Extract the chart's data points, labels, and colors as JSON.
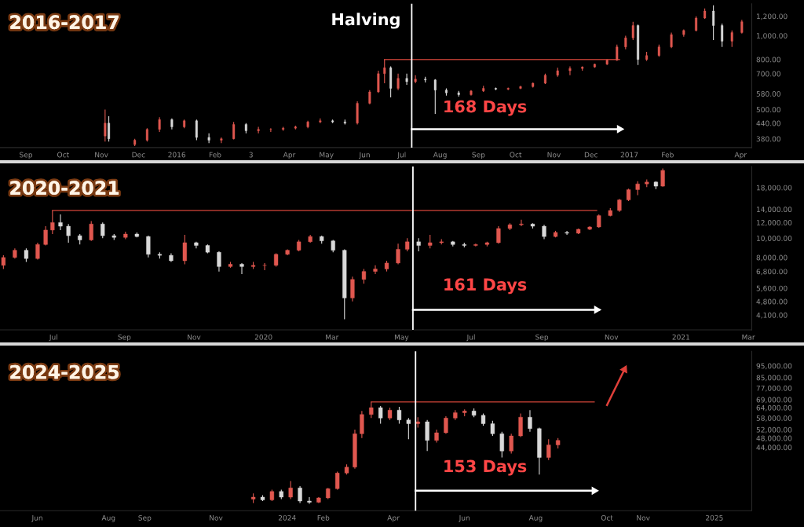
{
  "chart_data": [
    {
      "type": "candlestick",
      "title": "2016-2017",
      "colors": [
        "#e0574f",
        "#d9d9d9",
        "#e0574f",
        "#e0574f",
        "#e0574f",
        "#d9d9d9",
        "#e0574f",
        "#d9d9d9",
        "#d9d9d9",
        "#e0574f",
        "#e0574f",
        "#d9d9d9",
        "#e0574f",
        "#e0574f",
        "#e0574f",
        "#e0574f",
        "#e0574f",
        "#e0574f",
        "#d9d9d9",
        "#d9d9d9",
        "#e0574f",
        "#e0574f",
        "#e0574f",
        "#e0574f",
        "#d9d9d9",
        "#e0574f",
        "#d9d9d9",
        "#e0574f",
        "#d9d9d9",
        "#d9d9d9",
        "#d9d9d9",
        "#d9d9d9",
        "#e0574f",
        "#e0574f",
        "#d9d9d9",
        "#e0574f",
        "#e0574f",
        "#e0574f",
        "#e0574f",
        "#e0574f",
        "#e0574f",
        "#e0574f",
        "#e0574f",
        "#e0574f",
        "#e0574f",
        "#e0574f",
        "#e0574f",
        "#d9d9d9",
        "#e0574f",
        "#e0574f",
        "#e0574f",
        "#e0574f",
        "#e0574f",
        "#e0574f",
        "#d9d9d9",
        "#d9d9d9",
        "#e0574f",
        "#e0574f"
      ],
      "log": true,
      "grid": false,
      "xlim": [
        "2015-08-11",
        "2017-04-10"
      ],
      "ylim": [
        350,
        1350
      ],
      "xticks": [
        {
          "value": "2015-09-01",
          "label": "Sep"
        },
        {
          "value": "2015-10-01",
          "label": "Oct"
        },
        {
          "value": "2015-11-01",
          "label": "Nov"
        },
        {
          "value": "2015-12-01",
          "label": "Dec"
        },
        {
          "value": "2016-01-01",
          "label": "2016"
        },
        {
          "value": "2016-02-01",
          "label": "Feb"
        },
        {
          "value": "2016-03-01",
          "label": "3"
        },
        {
          "value": "2016-04-01",
          "label": "Apr"
        },
        {
          "value": "2016-05-01",
          "label": "May"
        },
        {
          "value": "2016-06-01",
          "label": "Jun"
        },
        {
          "value": "2016-07-01",
          "label": "Jul"
        },
        {
          "value": "2016-08-01",
          "label": "Aug"
        },
        {
          "value": "2016-09-01",
          "label": "Sep"
        },
        {
          "value": "2016-10-01",
          "label": "Oct"
        },
        {
          "value": "2016-11-01",
          "label": "Nov"
        },
        {
          "value": "2016-12-01",
          "label": "Dec"
        },
        {
          "value": "2017-01-01",
          "label": "2017"
        },
        {
          "value": "2017-02-01",
          "label": "Feb"
        },
        {
          "value": "2017-04-01",
          "label": "Apr"
        }
      ],
      "yticks": [
        {
          "value": 380,
          "label": "380.00"
        },
        {
          "value": 440,
          "label": "440.00"
        },
        {
          "value": 500,
          "label": "500.00"
        },
        {
          "value": 580,
          "label": "580.00"
        },
        {
          "value": 700,
          "label": "700.00"
        },
        {
          "value": 800,
          "label": "800.00"
        },
        {
          "value": 1000,
          "label": "1,000.00"
        },
        {
          "value": 1200,
          "label": "1,200.00"
        }
      ],
      "x": [
        "2015-11-04",
        "2015-11-07",
        "2015-11-28",
        "2015-12-08",
        "2015-12-18",
        "2015-12-28",
        "2016-01-07",
        "2016-01-17",
        "2016-01-27",
        "2016-02-06",
        "2016-02-16",
        "2016-02-26",
        "2016-03-07",
        "2016-03-17",
        "2016-03-27",
        "2016-04-06",
        "2016-04-16",
        "2016-04-26",
        "2016-05-06",
        "2016-05-16",
        "2016-05-26",
        "2016-06-05",
        "2016-06-12",
        "2016-06-17",
        "2016-06-22",
        "2016-06-28",
        "2016-07-05",
        "2016-07-12",
        "2016-07-20",
        "2016-07-28",
        "2016-08-06",
        "2016-08-16",
        "2016-08-26",
        "2016-09-05",
        "2016-09-15",
        "2016-09-25",
        "2016-10-05",
        "2016-10-15",
        "2016-10-25",
        "2016-11-04",
        "2016-11-14",
        "2016-11-24",
        "2016-12-04",
        "2016-12-14",
        "2016-12-22",
        "2016-12-29",
        "2017-01-04",
        "2017-01-08",
        "2017-01-15",
        "2017-01-25",
        "2017-02-04",
        "2017-02-14",
        "2017-02-24",
        "2017-03-03",
        "2017-03-10",
        "2017-03-17",
        "2017-03-25",
        "2017-04-02"
      ],
      "ohlc": [
        [
          390,
          500,
          370,
          440
        ],
        [
          440,
          470,
          370,
          380
        ],
        [
          360,
          380,
          355,
          375
        ],
        [
          375,
          420,
          370,
          415
        ],
        [
          415,
          465,
          405,
          455
        ],
        [
          455,
          460,
          415,
          425
        ],
        [
          425,
          455,
          420,
          450
        ],
        [
          450,
          455,
          375,
          385
        ],
        [
          385,
          400,
          365,
          375
        ],
        [
          375,
          385,
          365,
          380
        ],
        [
          380,
          445,
          378,
          435
        ],
        [
          435,
          440,
          400,
          410
        ],
        [
          410,
          425,
          400,
          415
        ],
        [
          415,
          420,
          405,
          415
        ],
        [
          415,
          425,
          410,
          420
        ],
        [
          420,
          430,
          415,
          425
        ],
        [
          425,
          450,
          420,
          445
        ],
        [
          445,
          460,
          440,
          450
        ],
        [
          450,
          455,
          440,
          445
        ],
        [
          445,
          455,
          435,
          440
        ],
        [
          440,
          540,
          435,
          530
        ],
        [
          530,
          600,
          525,
          590
        ],
        [
          590,
          720,
          585,
          700
        ],
        [
          700,
          800,
          640,
          740
        ],
        [
          740,
          750,
          560,
          610
        ],
        [
          610,
          700,
          600,
          670
        ],
        [
          670,
          700,
          630,
          650
        ],
        [
          650,
          690,
          640,
          665
        ],
        [
          665,
          680,
          645,
          660
        ],
        [
          660,
          665,
          480,
          600
        ],
        [
          600,
          610,
          570,
          585
        ],
        [
          585,
          595,
          565,
          575
        ],
        [
          575,
          600,
          570,
          595
        ],
        [
          595,
          625,
          590,
          610
        ],
        [
          610,
          615,
          600,
          605
        ],
        [
          605,
          615,
          600,
          610
        ],
        [
          610,
          625,
          605,
          620
        ],
        [
          620,
          645,
          615,
          640
        ],
        [
          640,
          700,
          635,
          690
        ],
        [
          690,
          740,
          680,
          720
        ],
        [
          720,
          750,
          690,
          735
        ],
        [
          735,
          750,
          720,
          745
        ],
        [
          745,
          770,
          740,
          765
        ],
        [
          765,
          800,
          760,
          795
        ],
        [
          795,
          920,
          790,
          900
        ],
        [
          900,
          1000,
          880,
          980
        ],
        [
          980,
          1140,
          960,
          1100
        ],
        [
          1100,
          1110,
          760,
          800
        ],
        [
          800,
          860,
          790,
          830
        ],
        [
          830,
          920,
          820,
          900
        ],
        [
          900,
          1030,
          890,
          1010
        ],
        [
          1010,
          1060,
          990,
          1050
        ],
        [
          1050,
          1200,
          1040,
          1180
        ],
        [
          1180,
          1290,
          1170,
          1260
        ],
        [
          1260,
          1330,
          960,
          1100
        ],
        [
          1100,
          1120,
          900,
          950
        ],
        [
          950,
          1050,
          900,
          1030
        ],
        [
          1030,
          1160,
          1020,
          1140
        ]
      ],
      "series": [
        {
          "type": "line",
          "color": "#b23a30",
          "x": [
            "2016-06-17",
            "2016-12-24"
          ],
          "values": [
            800,
            800
          ]
        },
        {
          "type": "line",
          "color": "#ffffff",
          "marker": "triangle",
          "x": [
            "2016-07-09",
            "2016-12-24"
          ],
          "values": [
            416,
            416
          ]
        }
      ],
      "ref_lines": [
        {
          "axis": "x",
          "value": "2016-07-09",
          "color": "#ffffff"
        }
      ],
      "annotations": [
        {
          "text": "Halving",
          "x": "2016-07-09",
          "y": 1150
        },
        "168 Days"
      ]
    },
    {
      "type": "candlestick",
      "title": "2020-2021",
      "colors": [
        "#e0574f",
        "#e0574f",
        "#d9d9d9",
        "#e0574f",
        "#e0574f",
        "#e0574f",
        "#d9d9d9",
        "#d9d9d9",
        "#d9d9d9",
        "#e0574f",
        "#d9d9d9",
        "#d9d9d9",
        "#e0574f",
        "#d9d9d9",
        "#d9d9d9",
        "#d9d9d9",
        "#d9d9d9",
        "#e0574f",
        "#d9d9d9",
        "#d9d9d9",
        "#d9d9d9",
        "#e0574f",
        "#d9d9d9",
        "#e0574f",
        "#e0574f",
        "#e0574f",
        "#e0574f",
        "#e0574f",
        "#e0574f",
        "#d9d9d9",
        "#d9d9d9",
        "#d9d9d9",
        "#e0574f",
        "#e0574f",
        "#e0574f",
        "#e0574f",
        "#e0574f",
        "#e0574f",
        "#d9d9d9",
        "#e0574f",
        "#e0574f",
        "#d9d9d9",
        "#d9d9d9",
        "#e0574f",
        "#e0574f",
        "#e0574f",
        "#e0574f",
        "#e0574f",
        "#d9d9d9",
        "#d9d9d9",
        "#e0574f",
        "#d9d9d9",
        "#e0574f",
        "#e0574f",
        "#e0574f",
        "#e0574f",
        "#e0574f",
        "#e0574f",
        "#e0574f",
        "#e0574f",
        "#d9d9d9",
        "#e0574f"
      ],
      "log": true,
      "grid": false,
      "xlim": [
        "2019-05-15",
        "2021-03-04"
      ],
      "ylim": [
        3450,
        23000
      ],
      "xticks": [
        {
          "value": "2019-07-01",
          "label": "Jul"
        },
        {
          "value": "2019-09-01",
          "label": "Sep"
        },
        {
          "value": "2019-11-01",
          "label": "Nov"
        },
        {
          "value": "2020-01-01",
          "label": "2020"
        },
        {
          "value": "2020-03-01",
          "label": "Mar"
        },
        {
          "value": "2020-05-01",
          "label": "May"
        },
        {
          "value": "2020-07-01",
          "label": "Jul"
        },
        {
          "value": "2020-09-01",
          "label": "Sep"
        },
        {
          "value": "2020-11-01",
          "label": "Nov"
        },
        {
          "value": "2021-01-01",
          "label": "2021"
        },
        {
          "value": "2021-03-01",
          "label": "Mar"
        }
      ],
      "yticks": [
        {
          "value": 4100,
          "label": "4,100.00"
        },
        {
          "value": 4800,
          "label": "4,800.00"
        },
        {
          "value": 5600,
          "label": "5,600.00"
        },
        {
          "value": 6800,
          "label": "6,800.00"
        },
        {
          "value": 8000,
          "label": "8,000.00"
        },
        {
          "value": 10000,
          "label": "10,000.00"
        },
        {
          "value": 12000,
          "label": "12,000.00"
        },
        {
          "value": 14000,
          "label": "14,000.00"
        },
        {
          "value": 18000,
          "label": "18,000.00"
        }
      ],
      "x": [
        "2019-05-18",
        "2019-05-28",
        "2019-06-07",
        "2019-06-17",
        "2019-06-24",
        "2019-06-30",
        "2019-07-07",
        "2019-07-14",
        "2019-07-24",
        "2019-08-03",
        "2019-08-13",
        "2019-08-23",
        "2019-09-02",
        "2019-09-12",
        "2019-09-22",
        "2019-10-02",
        "2019-10-12",
        "2019-10-24",
        "2019-11-03",
        "2019-11-13",
        "2019-11-23",
        "2019-12-03",
        "2019-12-13",
        "2019-12-23",
        "2020-01-02",
        "2020-01-12",
        "2020-01-22",
        "2020-02-01",
        "2020-02-11",
        "2020-02-21",
        "2020-03-02",
        "2020-03-12",
        "2020-03-19",
        "2020-03-29",
        "2020-04-08",
        "2020-04-18",
        "2020-04-28",
        "2020-05-06",
        "2020-05-16",
        "2020-05-26",
        "2020-06-05",
        "2020-06-15",
        "2020-06-25",
        "2020-07-05",
        "2020-07-15",
        "2020-07-25",
        "2020-08-04",
        "2020-08-14",
        "2020-08-24",
        "2020-09-03",
        "2020-09-13",
        "2020-09-23",
        "2020-10-03",
        "2020-10-13",
        "2020-10-21",
        "2020-10-31",
        "2020-11-08",
        "2020-11-16",
        "2020-11-24",
        "2020-12-02",
        "2020-12-10",
        "2020-12-16"
      ],
      "ohlc": [
        [
          7300,
          8200,
          7000,
          8000
        ],
        [
          8000,
          8900,
          7900,
          8700
        ],
        [
          8700,
          8900,
          7600,
          7900
        ],
        [
          7900,
          9500,
          7800,
          9300
        ],
        [
          9300,
          11500,
          9200,
          11000
        ],
        [
          11000,
          13800,
          10500,
          12000
        ],
        [
          12000,
          13200,
          11000,
          11500
        ],
        [
          11500,
          11800,
          9500,
          10300
        ],
        [
          10300,
          10500,
          9300,
          9800
        ],
        [
          9800,
          12200,
          9700,
          11800
        ],
        [
          11800,
          12000,
          10000,
          10300
        ],
        [
          10300,
          10500,
          9800,
          10100
        ],
        [
          10100,
          10800,
          9900,
          10500
        ],
        [
          10500,
          10700,
          10100,
          10200
        ],
        [
          10200,
          10300,
          8000,
          8300
        ],
        [
          8300,
          8500,
          7900,
          8200
        ],
        [
          8200,
          8400,
          7600,
          7700
        ],
        [
          7700,
          10400,
          7400,
          9500
        ],
        [
          9500,
          9600,
          8900,
          9200
        ],
        [
          9200,
          9300,
          8400,
          8500
        ],
        [
          8500,
          8600,
          6800,
          7200
        ],
        [
          7200,
          7600,
          7100,
          7400
        ],
        [
          7400,
          7500,
          6600,
          7200
        ],
        [
          7200,
          7600,
          7000,
          7300
        ],
        [
          7300,
          7500,
          6900,
          7300
        ],
        [
          7300,
          8400,
          7200,
          8300
        ],
        [
          8300,
          8800,
          8200,
          8700
        ],
        [
          8700,
          9800,
          8600,
          9600
        ],
        [
          9600,
          10400,
          9500,
          10200
        ],
        [
          10200,
          10300,
          9400,
          9700
        ],
        [
          9700,
          9800,
          8500,
          8700
        ],
        [
          8700,
          8800,
          3900,
          5000
        ],
        [
          5000,
          6400,
          4800,
          6200
        ],
        [
          6200,
          7000,
          5900,
          6800
        ],
        [
          6800,
          7300,
          6600,
          7000
        ],
        [
          7000,
          7700,
          6800,
          7500
        ],
        [
          7500,
          9400,
          7400,
          8800
        ],
        [
          8800,
          10000,
          8600,
          9600
        ],
        [
          9600,
          10000,
          8600,
          9200
        ],
        [
          9200,
          10400,
          8900,
          9500
        ],
        [
          9500,
          9900,
          9300,
          9600
        ],
        [
          9600,
          9700,
          9100,
          9300
        ],
        [
          9300,
          9500,
          9000,
          9200
        ],
        [
          9200,
          9400,
          9100,
          9300
        ],
        [
          9300,
          9600,
          9100,
          9500
        ],
        [
          9500,
          11500,
          9400,
          11200
        ],
        [
          11200,
          11900,
          11000,
          11700
        ],
        [
          11700,
          12400,
          11500,
          11800
        ],
        [
          11800,
          11900,
          11200,
          11500
        ],
        [
          11500,
          11700,
          9900,
          10200
        ],
        [
          10200,
          10900,
          10100,
          10700
        ],
        [
          10700,
          10900,
          10400,
          10600
        ],
        [
          10600,
          11200,
          10500,
          11100
        ],
        [
          11100,
          11500,
          11000,
          11400
        ],
        [
          11400,
          13200,
          11300,
          13000
        ],
        [
          13000,
          14200,
          12900,
          13800
        ],
        [
          13800,
          15800,
          13600,
          15600
        ],
        [
          15600,
          17800,
          15400,
          17600
        ],
        [
          17600,
          19400,
          16500,
          18800
        ],
        [
          18800,
          19800,
          18100,
          19200
        ],
        [
          19200,
          19400,
          17700,
          18300
        ],
        [
          18300,
          22500,
          18200,
          22000
        ]
      ],
      "series": [
        {
          "type": "line",
          "color": "#b23a30",
          "x": [
            "2019-06-30",
            "2020-10-19"
          ],
          "values": [
            13800,
            13800
          ]
        },
        {
          "type": "line",
          "color": "#ffffff",
          "marker": "triangle",
          "x": [
            "2020-05-11",
            "2020-10-19"
          ],
          "values": [
            4360,
            4360
          ]
        }
      ],
      "ref_lines": [
        {
          "axis": "x",
          "value": "2020-05-11",
          "color": "#ffffff"
        }
      ],
      "annotations": [
        "161 Days"
      ]
    },
    {
      "type": "candlestick",
      "title": "2024-2025",
      "colors": [
        "#e0574f",
        "#d9d9d9",
        "#e0574f",
        "#d9d9d9",
        "#e0574f",
        "#d9d9d9",
        "#d9d9d9",
        "#e0574f",
        "#e0574f",
        "#e0574f",
        "#e0574f",
        "#e0574f",
        "#e0574f",
        "#e0574f",
        "#d9d9d9",
        "#e0574f",
        "#d9d9d9",
        "#d9d9d9",
        "#e0574f",
        "#d9d9d9",
        "#e0574f",
        "#e0574f",
        "#e0574f",
        "#e0574f",
        "#d9d9d9",
        "#d9d9d9",
        "#d9d9d9",
        "#d9d9d9",
        "#e0574f",
        "#e0574f",
        "#d9d9d9",
        "#d9d9d9",
        "#e0574f",
        "#e0574f"
      ],
      "log": true,
      "grid": false,
      "xlim": [
        "2023-04-30",
        "2025-02-02"
      ],
      "ylim": [
        24200,
        109000
      ],
      "xticks": [
        {
          "value": "2023-06-01",
          "label": "Jun"
        },
        {
          "value": "2023-08-01",
          "label": "Aug"
        },
        {
          "value": "2023-09-01",
          "label": "Sep"
        },
        {
          "value": "2023-11-01",
          "label": "Nov"
        },
        {
          "value": "2024-01-01",
          "label": "2024"
        },
        {
          "value": "2024-02-01",
          "label": "Feb"
        },
        {
          "value": "2024-04-01",
          "label": "Apr"
        },
        {
          "value": "2024-06-01",
          "label": "Jun"
        },
        {
          "value": "2024-08-01",
          "label": "Aug"
        },
        {
          "value": "2024-10-01",
          "label": "Oct"
        },
        {
          "value": "2024-11-01",
          "label": "Nov"
        },
        {
          "value": "2025-01-01",
          "label": "2025"
        }
      ],
      "yticks": [
        {
          "value": 44000,
          "label": "44,000.00"
        },
        {
          "value": 48000,
          "label": "48,000.00"
        },
        {
          "value": 52000,
          "label": "52,000.00"
        },
        {
          "value": 58000,
          "label": "58,000.00"
        },
        {
          "value": 64000,
          "label": "64,000.00"
        },
        {
          "value": 69000,
          "label": "69,000.00"
        },
        {
          "value": 77000,
          "label": "77,000.00"
        },
        {
          "value": 85000,
          "label": "85,000.00"
        },
        {
          "value": 95000,
          "label": "95,000.00"
        }
      ],
      "x": [
        "2023-12-03",
        "2023-12-11",
        "2023-12-19",
        "2023-12-27",
        "2024-01-04",
        "2024-01-12",
        "2024-01-20",
        "2024-01-28",
        "2024-02-05",
        "2024-02-13",
        "2024-02-21",
        "2024-02-28",
        "2024-03-05",
        "2024-03-13",
        "2024-03-21",
        "2024-03-29",
        "2024-04-06",
        "2024-04-14",
        "2024-04-22",
        "2024-04-30",
        "2024-05-08",
        "2024-05-16",
        "2024-05-24",
        "2024-06-01",
        "2024-06-09",
        "2024-06-17",
        "2024-06-25",
        "2024-07-03",
        "2024-07-11",
        "2024-07-19",
        "2024-07-27",
        "2024-08-04",
        "2024-08-12",
        "2024-08-20"
      ],
      "ohlc": [
        [
          27000,
          28500,
          26000,
          27500
        ],
        [
          27500,
          28000,
          26500,
          26800
        ],
        [
          26800,
          29500,
          26500,
          29000
        ],
        [
          29000,
          29500,
          27000,
          27500
        ],
        [
          27500,
          32000,
          27000,
          30000
        ],
        [
          30000,
          30500,
          26000,
          26500
        ],
        [
          26500,
          27500,
          25800,
          26200
        ],
        [
          26200,
          27500,
          26000,
          27300
        ],
        [
          27300,
          30000,
          27000,
          29800
        ],
        [
          29800,
          35000,
          29500,
          34500
        ],
        [
          34500,
          37500,
          34000,
          36500
        ],
        [
          36500,
          52000,
          36000,
          50000
        ],
        [
          50000,
          62000,
          48000,
          60000
        ],
        [
          60000,
          67500,
          58000,
          64000
        ],
        [
          64000,
          65000,
          55000,
          58000
        ],
        [
          58000,
          64000,
          57000,
          62500
        ],
        [
          62500,
          64500,
          55000,
          57000
        ],
        [
          57000,
          58000,
          47500,
          55000
        ],
        [
          55000,
          58500,
          53000,
          56000
        ],
        [
          56000,
          57000,
          42500,
          47000
        ],
        [
          47000,
          52000,
          46000,
          50500
        ],
        [
          50500,
          59000,
          50000,
          58000
        ],
        [
          58000,
          62500,
          57000,
          61000
        ],
        [
          61000,
          63000,
          59000,
          62000
        ],
        [
          62000,
          63500,
          58500,
          59500
        ],
        [
          59500,
          60500,
          54000,
          55000
        ],
        [
          55000,
          56500,
          49000,
          50000
        ],
        [
          50000,
          51000,
          40000,
          42500
        ],
        [
          42500,
          50000,
          41500,
          49000
        ],
        [
          49000,
          60500,
          48500,
          58500
        ],
        [
          58500,
          62500,
          51000,
          52500
        ],
        [
          52500,
          53000,
          34000,
          40000
        ],
        [
          40000,
          47500,
          39000,
          45000
        ],
        [
          45000,
          48000,
          43500,
          47000
        ]
      ],
      "series": [
        {
          "type": "line",
          "color": "#b23a30",
          "x": [
            "2024-03-13",
            "2024-09-20"
          ],
          "values": [
            67500,
            67500
          ]
        },
        {
          "type": "line",
          "color": "#e0403a",
          "marker": "triangle",
          "x": [
            "2024-10-01",
            "2024-10-16"
          ],
          "values": [
            65600,
            91800
          ]
        },
        {
          "type": "line",
          "color": "#ffffff",
          "marker": "triangle",
          "x": [
            "2024-04-20",
            "2024-09-20"
          ],
          "values": [
            29200,
            29200
          ]
        }
      ],
      "ref_lines": [
        {
          "axis": "x",
          "value": "2024-04-20",
          "color": "#ffffff"
        }
      ],
      "annotations": [
        "153 Days"
      ]
    }
  ]
}
